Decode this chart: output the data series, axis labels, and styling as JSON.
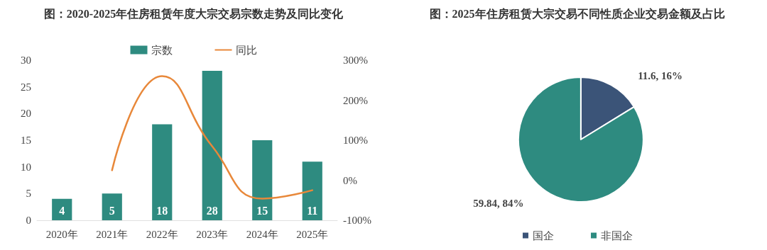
{
  "chart_data": [
    {
      "type": "bar",
      "title": "图：2020-2025年住房租赁年度大宗交易宗数走势及同比变化",
      "categories": [
        "2020年",
        "2021年",
        "2022年",
        "2023年",
        "2024年",
        "2025年"
      ],
      "series": [
        {
          "name": "宗数",
          "type": "bar",
          "color": "#2e8b80",
          "values": [
            4,
            5,
            18,
            28,
            15,
            11
          ],
          "value_labels": [
            "4",
            "5",
            "18",
            "28",
            "15",
            "11"
          ]
        },
        {
          "name": "同比",
          "type": "line",
          "axis": "y2",
          "color": "#e8883a",
          "values": [
            null,
            25,
            260,
            85,
            -46,
            -25
          ]
        }
      ],
      "ylim": [
        0,
        30
      ],
      "yticks": [
        0,
        5,
        10,
        15,
        20,
        25,
        30
      ],
      "y2lim": [
        -100,
        300
      ],
      "y2ticks": [
        {
          "value": -100,
          "label": "-100%"
        },
        {
          "value": 0,
          "label": "0%"
        },
        {
          "value": 100,
          "label": "100%"
        },
        {
          "value": 200,
          "label": "200%"
        },
        {
          "value": 300,
          "label": "300%"
        }
      ],
      "grid": false,
      "legend": "top",
      "marker": "none",
      "line_style": "solid"
    },
    {
      "type": "pie",
      "title": "图：2025年住房租赁大宗交易不同性质企业交易金额及占比",
      "categories": [
        "国企",
        "非国企"
      ],
      "values": [
        11.6,
        59.84
      ],
      "colors": [
        "#3b5478",
        "#2e8b80"
      ],
      "value_labels": [
        "11.6, 16%",
        "59.84, 84%"
      ],
      "legend": "bottom"
    }
  ]
}
